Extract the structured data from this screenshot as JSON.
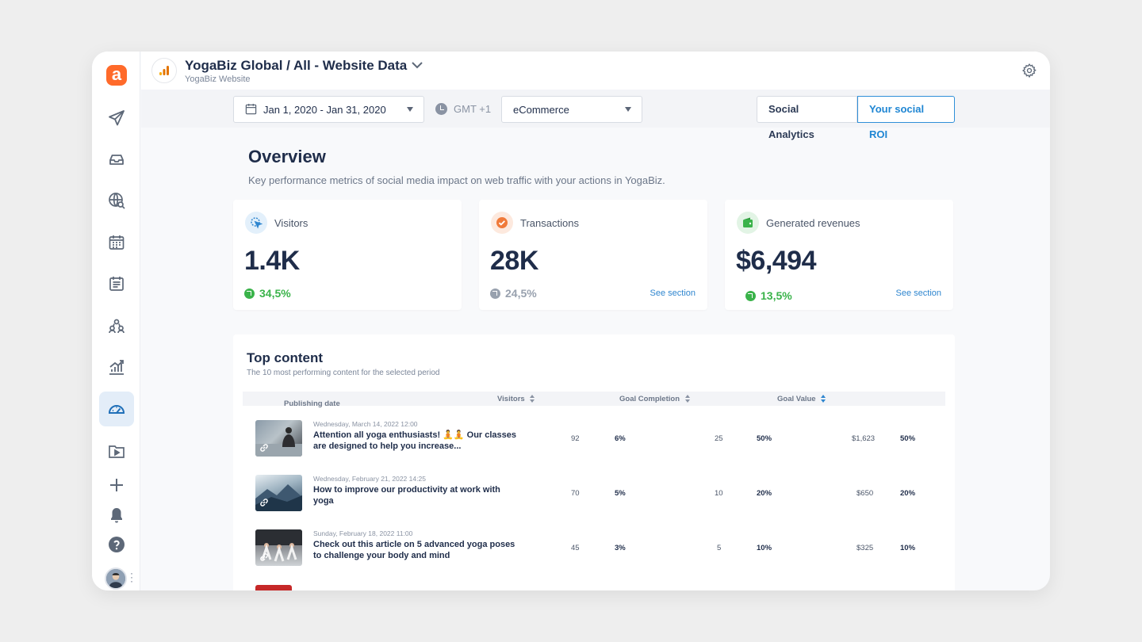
{
  "header": {
    "title": "YogaBiz Global / All - Website Data",
    "subtitle": "YogaBiz Website"
  },
  "filters": {
    "date_range": "Jan 1, 2020 - Jan 31, 2020",
    "timezone": "GMT +1",
    "goal": "eCommerce"
  },
  "tabs": [
    {
      "label": "Social Analytics",
      "active": false
    },
    {
      "label": "Your social ROI",
      "active": true
    }
  ],
  "overview": {
    "title": "Overview",
    "subtitle": "Key performance metrics of social media impact on web traffic with your actions in YogaBiz."
  },
  "cards": [
    {
      "label": "Visitors",
      "value": "1.4K",
      "delta": "34,5%",
      "trend": "up",
      "link": ""
    },
    {
      "label": "Transactions",
      "value": "28K",
      "delta": "24,5%",
      "trend": "neutral",
      "link": "See section"
    },
    {
      "label": "Generated revenues",
      "value": "$6,494",
      "delta": "13,5%",
      "trend": "up",
      "link": "See section"
    }
  ],
  "top_content": {
    "title": "Top content",
    "subtitle": "The 10 most performing content for the selected period",
    "columns": {
      "publishing_date": "Publishing date",
      "visitors": "Visitors",
      "goal_completion": "Goal Completion",
      "goal_value": "Goal Value"
    },
    "rows": [
      {
        "date": "Wednesday, March 14, 2022 12:00",
        "text": "Attention all yoga enthusiasts! 🧘🧘 Our classes are designed to help you increase...",
        "visitors": "92",
        "visitors_pct": "6%",
        "completion": "25",
        "completion_pct": "50%",
        "value": "$1,623",
        "value_pct": "50%"
      },
      {
        "date": "Wednesday, February 21, 2022 14:25",
        "text": "How to improve our productivity at work with yoga",
        "visitors": "70",
        "visitors_pct": "5%",
        "completion": "10",
        "completion_pct": "20%",
        "value": "$650",
        "value_pct": "20%"
      },
      {
        "date": "Sunday, February 18, 2022 11:00",
        "text": "Check out this article on 5 advanced yoga poses to challenge your body and mind",
        "visitors": "45",
        "visitors_pct": "3%",
        "completion": "5",
        "completion_pct": "10%",
        "value": "$325",
        "value_pct": "10%"
      }
    ]
  },
  "colors": {
    "accent": "#1f86d3",
    "brand": "#ff6a2a",
    "positive": "#3ab34a",
    "neutral": "#98a1ae"
  },
  "icons": {
    "sidebar": [
      "send-icon",
      "inbox-icon",
      "globe-search-icon",
      "calendar-icon",
      "notes-icon",
      "team-icon",
      "analytics-icon",
      "dashboard-gauge-icon",
      "media-library-icon",
      "plus-icon",
      "bell-icon",
      "help-icon"
    ]
  }
}
